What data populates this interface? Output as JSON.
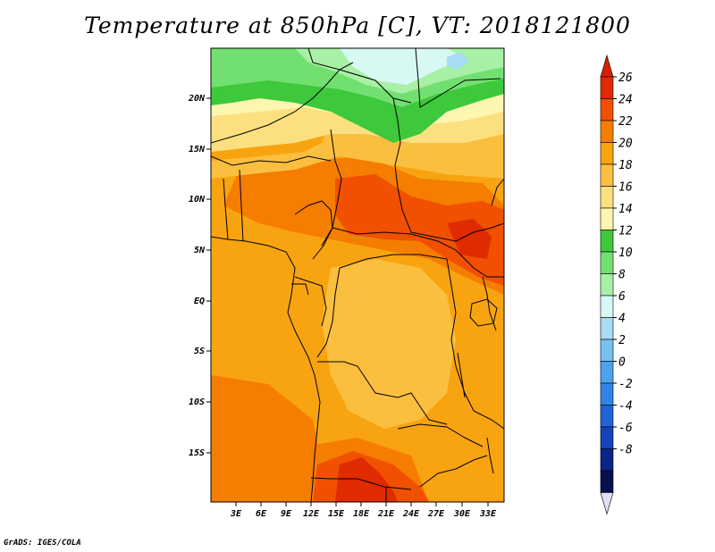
{
  "title": "Temperature at 850hPa [C], VT: 2018121800",
  "credit": "GrADS: IGES/COLA",
  "map": {
    "lat_labels": [
      "20N",
      "15N",
      "10N",
      "5N",
      "EQ",
      "5S",
      "10S",
      "15S"
    ],
    "lon_labels": [
      "3E",
      "6E",
      "9E",
      "12E",
      "15E",
      "18E",
      "21E",
      "24E",
      "27E",
      "30E",
      "33E"
    ]
  },
  "colorbar": {
    "labels": [
      "26",
      "24",
      "22",
      "20",
      "18",
      "16",
      "14",
      "12",
      "10",
      "8",
      "6",
      "4",
      "2",
      "0",
      "-2",
      "-4",
      "-6",
      "-8"
    ],
    "colors": [
      "#e02a00",
      "#f05000",
      "#f57d00",
      "#f8a410",
      "#fbbf40",
      "#fce080",
      "#fdf6b0",
      "#3ec83c",
      "#72e070",
      "#a8f0a6",
      "#d8f8f4",
      "#a8dcf4",
      "#78c2f0",
      "#4ea4ec",
      "#3284e4",
      "#2064d4",
      "#1444b8",
      "#0c2488",
      "#081050"
    ],
    "top_color": "#d42000",
    "bottom_color": "#e0e0f8"
  },
  "fields": {
    "background": "#f8a410"
  }
}
